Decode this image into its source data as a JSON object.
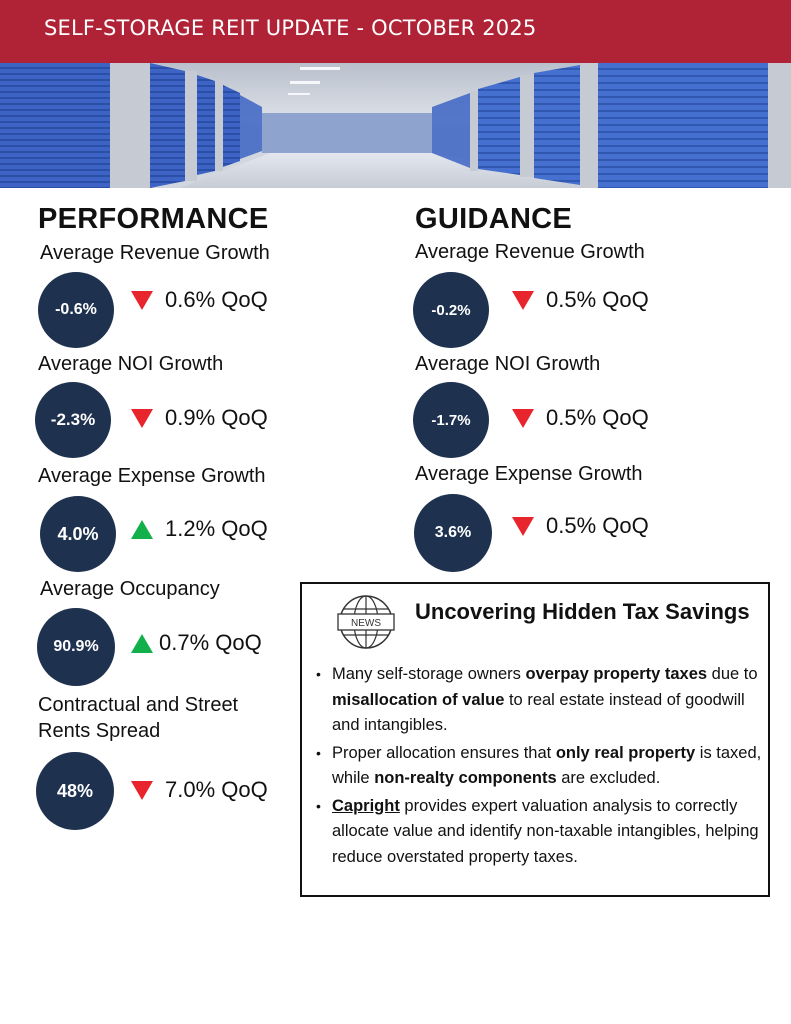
{
  "header": {
    "title": "SELF-STORAGE REIT UPDATE - OCTOBER 2025",
    "accent_color": "#b02236"
  },
  "banner": {
    "icon": "storage-corridor-image"
  },
  "performance": {
    "heading": "PERFORMANCE",
    "metrics": [
      {
        "label": "Average Revenue Growth",
        "value": "-0.6%",
        "change": "0.6% QoQ",
        "direction": "down"
      },
      {
        "label": "Average NOI Growth",
        "value": "-2.3%",
        "change": "0.9% QoQ",
        "direction": "down"
      },
      {
        "label": "Average Expense Growth",
        "value": "4.0%",
        "change": "1.2% QoQ",
        "direction": "up"
      },
      {
        "label": "Average Occupancy",
        "value": "90.9%",
        "change": "0.7% QoQ",
        "direction": "up"
      },
      {
        "label": "Contractual and Street Rents Spread",
        "value": "48%",
        "change": "7.0% QoQ",
        "direction": "down"
      }
    ]
  },
  "guidance": {
    "heading": "GUIDANCE",
    "metrics": [
      {
        "label": "Average Revenue Growth",
        "value": "-0.2%",
        "change": "0.5% QoQ",
        "direction": "down"
      },
      {
        "label": "Average NOI Growth",
        "value": "-1.7%",
        "change": "0.5% QoQ",
        "direction": "down"
      },
      {
        "label": "Average Expense Growth",
        "value": "3.6%",
        "change": "0.5% QoQ",
        "direction": "down"
      }
    ]
  },
  "news": {
    "icon_label": "NEWS",
    "title": "Uncovering Hidden Tax Savings",
    "bullets": [
      [
        {
          "text": "Many self-storage owners ",
          "style": "normal"
        },
        {
          "text": "overpay property taxes",
          "style": "bold"
        },
        {
          "text": " due to ",
          "style": "normal"
        },
        {
          "text": "misallocation of value",
          "style": "bold"
        },
        {
          "text": " to real estate instead of goodwill and intangibles.",
          "style": "normal"
        }
      ],
      [
        {
          "text": "Proper allocation ensures that ",
          "style": "normal"
        },
        {
          "text": "only real property",
          "style": "bold"
        },
        {
          "text": " is taxed, while ",
          "style": "normal"
        },
        {
          "text": "non-realty components",
          "style": "bold"
        },
        {
          "text": " are excluded.",
          "style": "normal"
        }
      ],
      [
        {
          "text": "Capright",
          "style": "bold-underline"
        },
        {
          "text": " provides expert valuation analysis to correctly allocate value and identify non-taxable intangibles, helping reduce overstated property taxes.",
          "style": "normal"
        }
      ]
    ]
  },
  "colors": {
    "circle": "#1e314f",
    "down_arrow": "#e8242c",
    "up_arrow": "#12b04a"
  }
}
